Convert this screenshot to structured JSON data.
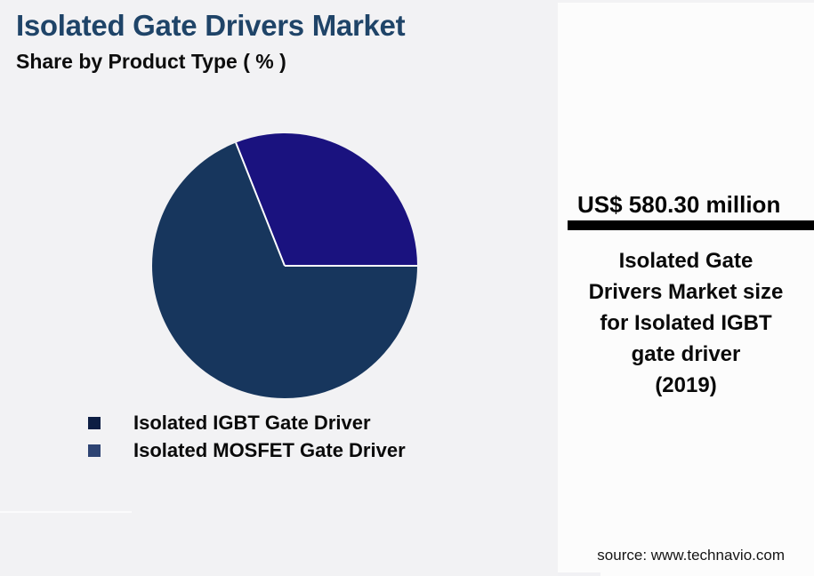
{
  "title": "Isolated Gate Drivers Market",
  "subtitle": "Share by Product Type ( % )",
  "chart_data": {
    "type": "pie",
    "title": "Isolated Gate Drivers Market",
    "subtitle": "Share by Product Type ( % )",
    "slices": [
      {
        "label": "Isolated IGBT Gate Driver",
        "value_pct": 69,
        "color": "#17365d",
        "legend_color": "#0d1e43"
      },
      {
        "label": "Isolated MOSFET Gate Driver",
        "value_pct": 31,
        "color": "#1a127f",
        "legend_color": "#2e4473"
      }
    ],
    "start_angle_deg": 0,
    "direction": "clockwise",
    "separator_color": "#ffffff",
    "legend_position": "bottom-left"
  },
  "panel": {
    "value": "US$ 580.30 million",
    "description_lines": [
      "Isolated Gate",
      "Drivers Market size",
      "for Isolated IGBT",
      "gate driver",
      "(2019)"
    ],
    "source": "source: www.technavio.com"
  },
  "colors": {
    "background": "#f2f2f4",
    "panel_background": "#fcfcfc",
    "title": "#1f4468",
    "divider_bar": "#000000"
  }
}
